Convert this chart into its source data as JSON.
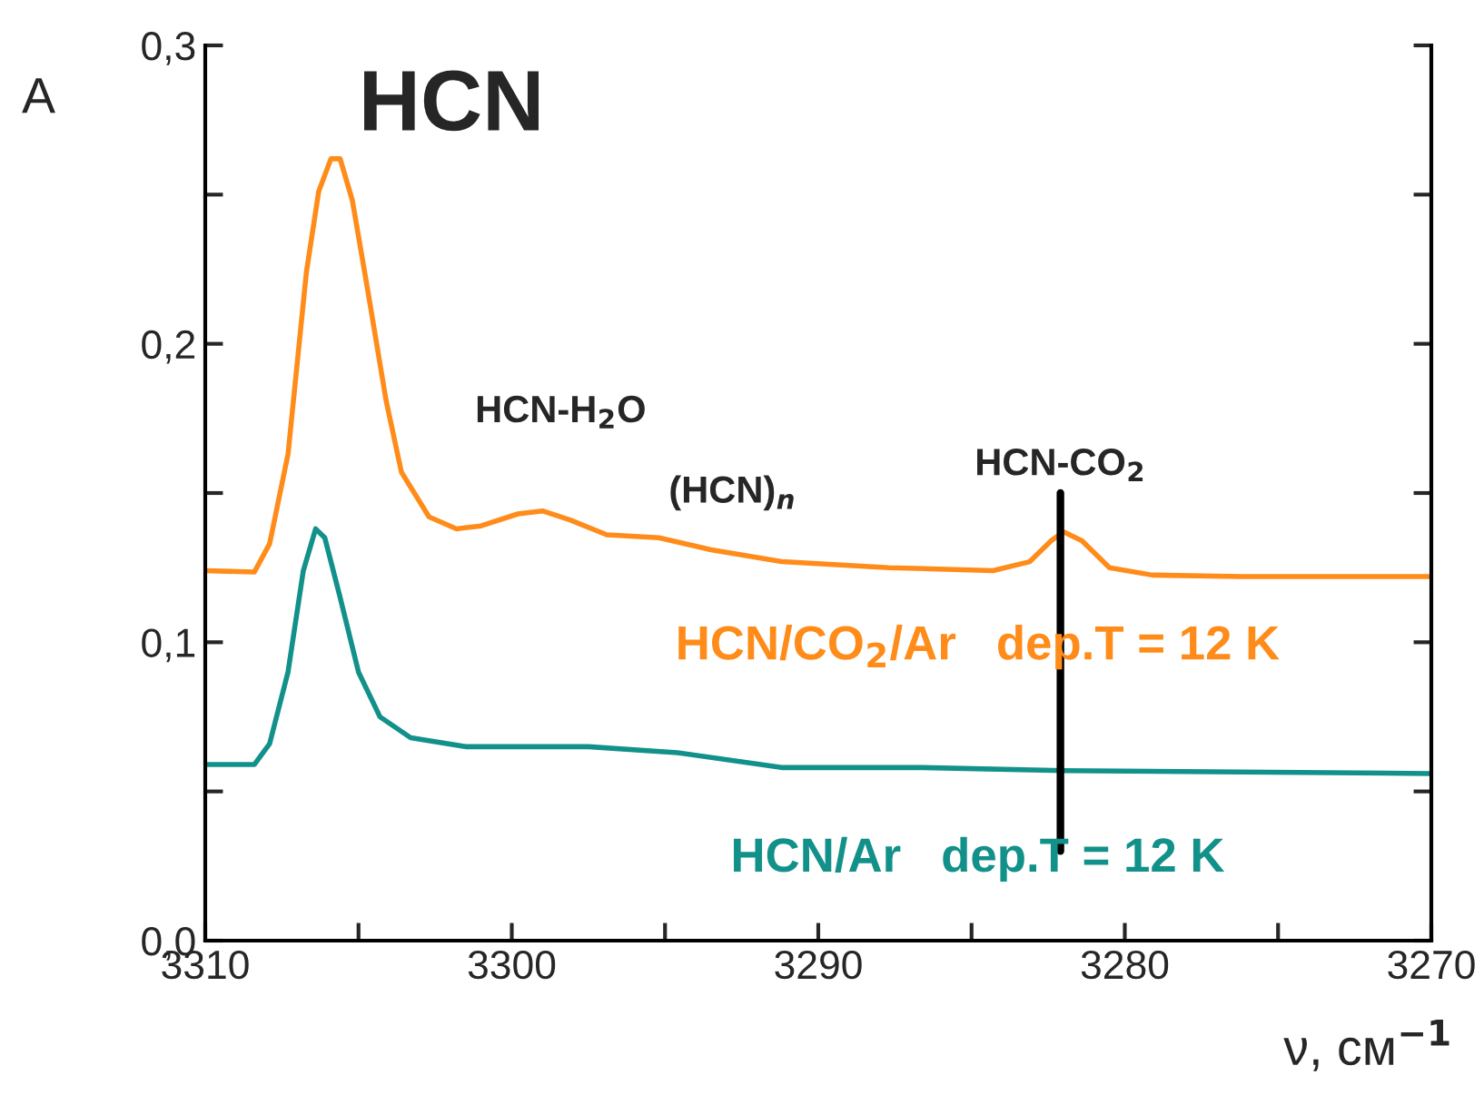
{
  "chart_data": {
    "type": "line",
    "title": "HCN",
    "ylabel": "A",
    "xlabel": "ν, см$^{−1}$",
    "xlim": [
      3310,
      3270
    ],
    "ylim": [
      0,
      0.3
    ],
    "xticks": [
      3310,
      {
        "value": 3305,
        "label": null
      },
      3300,
      {
        "value": 3295,
        "label": null
      },
      3290,
      {
        "value": 3285,
        "label": null
      },
      3280,
      {
        "value": 3275,
        "label": null
      },
      3270
    ],
    "yticks": [
      {
        "value": 0.0,
        "label": "0,0"
      },
      {
        "value": 0.05,
        "label": null
      },
      {
        "value": 0.1,
        "label": "0,1"
      },
      {
        "value": 0.15,
        "label": null
      },
      {
        "value": 0.2,
        "label": "0,2"
      },
      {
        "value": 0.25,
        "label": null
      },
      {
        "value": 0.3,
        "label": "0,3"
      }
    ],
    "grid": false,
    "legend": false,
    "marker": "none",
    "line_style": "solid",
    "series": [
      {
        "name": "HCN/CO$_{2}$/Ar   dep.T = 12 K",
        "color": "#ff8c1a",
        "x": [
          3310,
          3308.4,
          3307.9,
          3307.3,
          3306.7,
          3306.3,
          3305.9,
          3305.6,
          3305.2,
          3304.7,
          3304.1,
          3303.6,
          3302.7,
          3301.8,
          3301.0,
          3299.8,
          3299.0,
          3298.1,
          3296.9,
          3295.2,
          3293.5,
          3291.2,
          3287.7,
          3284.3,
          3283.1,
          3282.4,
          3282.0,
          3281.4,
          3280.5,
          3279.1,
          3276.2,
          3270
        ],
        "values": [
          0.124,
          0.1235,
          0.133,
          0.163,
          0.224,
          0.251,
          0.262,
          0.262,
          0.248,
          0.218,
          0.181,
          0.157,
          0.142,
          0.138,
          0.139,
          0.143,
          0.144,
          0.141,
          0.136,
          0.135,
          0.131,
          0.127,
          0.125,
          0.124,
          0.127,
          0.134,
          0.137,
          0.134,
          0.125,
          0.1225,
          0.122,
          0.122
        ]
      },
      {
        "name": "HCN/Ar   dep.T = 12 K",
        "color": "#12918a",
        "x": [
          3310,
          3308.4,
          3307.9,
          3307.3,
          3306.8,
          3306.4,
          3306.1,
          3305.6,
          3305.0,
          3304.3,
          3303.3,
          3301.5,
          3297.5,
          3294.6,
          3291.2,
          3286.6,
          3282.0,
          3270
        ],
        "values": [
          0.059,
          0.059,
          0.066,
          0.09,
          0.124,
          0.138,
          0.135,
          0.115,
          0.09,
          0.075,
          0.068,
          0.065,
          0.065,
          0.063,
          0.058,
          0.058,
          0.057,
          0.056
        ]
      }
    ],
    "ref_lines": [
      {
        "axis": "x",
        "value": 3282.1,
        "label": "HCN-CO$_{2}$",
        "color": "#000000",
        "line_style": "solid"
      }
    ],
    "annotations": [
      "HCN-H$_{2}$O",
      "(HCN)$_{n}$"
    ]
  }
}
